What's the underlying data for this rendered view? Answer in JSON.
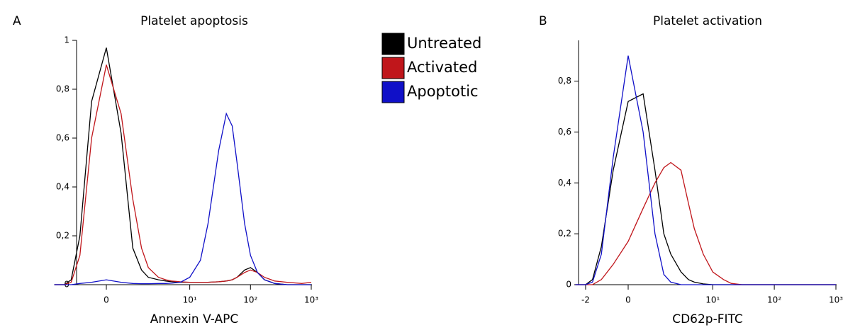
{
  "chart_data": [
    {
      "type": "line",
      "panel_label": "A",
      "title": "Platelet apoptosis",
      "xlabel": "Annexin V-APC",
      "xscale": "biexponential",
      "x": [
        -3,
        -2,
        -1.5,
        -1,
        -0.5,
        0,
        0.5,
        1,
        1.5,
        2,
        3,
        4,
        5,
        7,
        10,
        15,
        20,
        30,
        40,
        50,
        60,
        80,
        100,
        130,
        170,
        250,
        400,
        700,
        1000
      ],
      "series": [
        {
          "name": "Untreated",
          "color": "#000000",
          "values": [
            0,
            0,
            0.02,
            0.2,
            0.75,
            0.97,
            0.62,
            0.15,
            0.06,
            0.03,
            0.02,
            0.015,
            0.012,
            0.01,
            0.01,
            0.01,
            0.01,
            0.012,
            0.015,
            0.02,
            0.03,
            0.06,
            0.07,
            0.05,
            0.02,
            0.005,
            0,
            0,
            0
          ]
        },
        {
          "name": "Activated",
          "color": "#c0161b",
          "values": [
            0,
            0,
            0.01,
            0.12,
            0.6,
            0.9,
            0.7,
            0.35,
            0.15,
            0.07,
            0.03,
            0.02,
            0.015,
            0.012,
            0.01,
            0.01,
            0.01,
            0.012,
            0.015,
            0.02,
            0.03,
            0.05,
            0.06,
            0.05,
            0.03,
            0.015,
            0.01,
            0.005,
            0.01
          ]
        },
        {
          "name": "Apoptotic",
          "color": "#1010c8",
          "values": [
            0,
            0,
            0,
            0.005,
            0.01,
            0.02,
            0.01,
            0.005,
            0.004,
            0.004,
            0.005,
            0.005,
            0.006,
            0.01,
            0.03,
            0.1,
            0.25,
            0.55,
            0.7,
            0.65,
            0.5,
            0.25,
            0.12,
            0.05,
            0.02,
            0.005,
            0,
            0,
            0
          ]
        }
      ],
      "xlim": [
        -3,
        1000
      ],
      "xticks": [
        0,
        {
          "value": 10,
          "label": "10¹"
        },
        {
          "value": 100,
          "label": "10²"
        },
        {
          "value": 1000,
          "label": "10³"
        }
      ],
      "ylim": [
        0,
        1
      ],
      "yticks": [
        0,
        {
          "value": 0.2,
          "label": "0,2"
        },
        {
          "value": 0.4,
          "label": "0,4"
        },
        {
          "value": 0.6,
          "label": "0,6"
        },
        {
          "value": 0.8,
          "label": "0,8"
        },
        1
      ]
    },
    {
      "type": "line",
      "panel_label": "B",
      "title": "Platelet activation",
      "xlabel": "CD62p-FITC",
      "xscale": "biexponential",
      "x": [
        -3,
        -2,
        -1.5,
        -1,
        -0.5,
        0,
        0.5,
        1,
        1.5,
        2,
        3,
        4,
        5,
        7,
        10,
        15,
        20,
        30,
        50,
        100,
        1000
      ],
      "series": [
        {
          "color": "#000000",
          "values": [
            0,
            0,
            0.02,
            0.15,
            0.45,
            0.72,
            0.75,
            0.45,
            0.2,
            0.12,
            0.05,
            0.02,
            0.01,
            0.003,
            0,
            0,
            0,
            0,
            0,
            0,
            0
          ]
        },
        {
          "color": "#c0161b",
          "values": [
            0,
            0,
            0,
            0.02,
            0.08,
            0.17,
            0.3,
            0.4,
            0.46,
            0.48,
            0.45,
            0.32,
            0.22,
            0.12,
            0.05,
            0.02,
            0.005,
            0,
            0,
            0,
            0
          ]
        },
        {
          "color": "#1010c8",
          "values": [
            0,
            0,
            0.01,
            0.12,
            0.5,
            0.9,
            0.6,
            0.2,
            0.04,
            0.01,
            0,
            0,
            0,
            0,
            0,
            0,
            0,
            0,
            0,
            0,
            0
          ]
        }
      ],
      "xlim": [
        -3,
        1000
      ],
      "xticks": [
        -2,
        0,
        {
          "value": 10,
          "label": "10¹"
        },
        {
          "value": 100,
          "label": "10²"
        },
        {
          "value": 1000,
          "label": "10³"
        }
      ],
      "ylim": [
        0,
        0.96
      ],
      "yticks": [
        0,
        {
          "value": 0.2,
          "label": "0,2"
        },
        {
          "value": 0.4,
          "label": "0,4"
        },
        {
          "value": 0.6,
          "label": "0,6"
        },
        {
          "value": 0.8,
          "label": "0,8"
        }
      ]
    }
  ]
}
